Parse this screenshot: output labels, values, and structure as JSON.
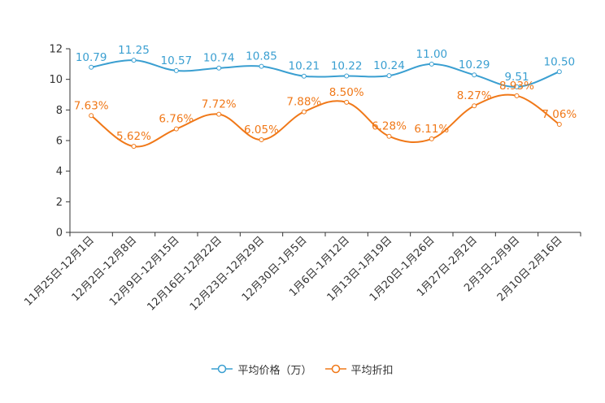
{
  "chart_data": {
    "type": "line",
    "title": "",
    "xlabel": "",
    "ylabel": "",
    "ylim": [
      0,
      12
    ],
    "yticks": [
      0,
      2,
      4,
      6,
      8,
      10,
      12
    ],
    "grid": false,
    "legend_position": "bottom-center",
    "categories": [
      "11月25日-12月1日",
      "12月2日-12月8日",
      "12月9日-12月15日",
      "12月16日-12月22日",
      "12月23日-12月29日",
      "12月30日-1月5日",
      "1月6日-1月12日",
      "1月13日-1月19日",
      "1月20日-1月26日",
      "1月27日-2月2日",
      "2月3日-2月9日",
      "2月10日-2月16日"
    ],
    "series": [
      {
        "name": "平均价格（万）",
        "color": "#3a9fd1",
        "values": [
          10.79,
          11.25,
          10.57,
          10.74,
          10.85,
          10.21,
          10.22,
          10.24,
          11.0,
          10.29,
          9.51,
          10.5
        ],
        "labels": [
          "10.79",
          "11.25",
          "10.57",
          "10.74",
          "10.85",
          "10.21",
          "10.22",
          "10.24",
          "11.00",
          "10.29",
          "9.51",
          "10.50"
        ]
      },
      {
        "name": "平均折扣",
        "color": "#f07818",
        "values": [
          7.63,
          5.62,
          6.76,
          7.72,
          6.05,
          7.88,
          8.5,
          6.28,
          6.11,
          8.27,
          8.93,
          7.06
        ],
        "labels": [
          "7.63%",
          "5.62%",
          "6.76%",
          "7.72%",
          "6.05%",
          "7.88%",
          "8.50%",
          "6.28%",
          "6.11%",
          "8.27%",
          "8.93%",
          "7.06%"
        ]
      }
    ]
  }
}
